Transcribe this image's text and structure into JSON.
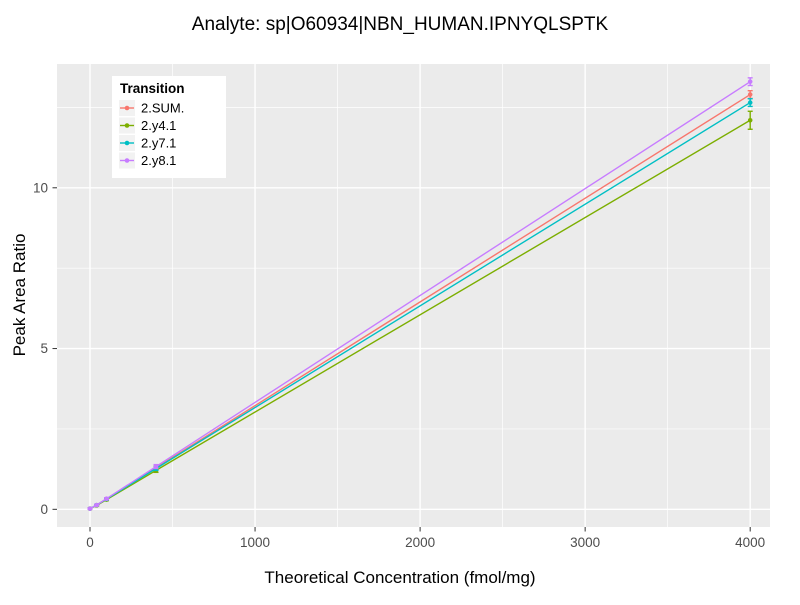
{
  "chart_data": {
    "type": "line",
    "title": "Analyte: sp|O60934|NBN_HUMAN.IPNYQLSPTK",
    "xlabel": "Theoretical Concentration (fmol/mg)",
    "ylabel": "Peak Area Ratio",
    "legend_title": "Transition",
    "legend_position": "top-left-inside",
    "grid": true,
    "panel_bg": "#EBEBEB",
    "grid_color": "#FFFFFF",
    "tick_label_color": "#4D4D4D",
    "x_ticks": [
      0,
      1000,
      2000,
      3000,
      4000
    ],
    "y_ticks": [
      0,
      5,
      10
    ],
    "xlim": [
      -200,
      4120
    ],
    "ylim": [
      -0.55,
      13.85
    ],
    "x": [
      0,
      40,
      100,
      400,
      4000
    ],
    "series": [
      {
        "name": "2.SUM.",
        "color": "#F8766D",
        "values": [
          0.02,
          0.13,
          0.32,
          1.29,
          12.9
        ],
        "errors": [
          0.02,
          0.02,
          0.03,
          0.06,
          0.12
        ]
      },
      {
        "name": "2.y4.1",
        "color": "#7CAE00",
        "values": [
          0.02,
          0.12,
          0.3,
          1.21,
          12.1
        ],
        "errors": [
          0.02,
          0.02,
          0.03,
          0.06,
          0.28
        ]
      },
      {
        "name": "2.y7.1",
        "color": "#00BFC4",
        "values": [
          0.02,
          0.13,
          0.32,
          1.27,
          12.65
        ],
        "errors": [
          0.02,
          0.02,
          0.03,
          0.06,
          0.12
        ]
      },
      {
        "name": "2.y8.1",
        "color": "#C77CFF",
        "values": [
          0.02,
          0.13,
          0.33,
          1.33,
          13.3
        ],
        "errors": [
          0.02,
          0.02,
          0.03,
          0.06,
          0.12
        ]
      }
    ]
  }
}
